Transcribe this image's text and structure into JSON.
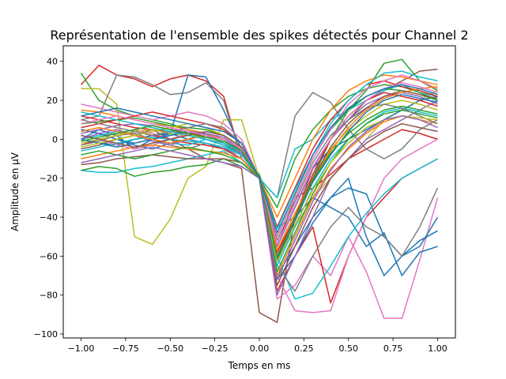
{
  "chart_data": {
    "type": "line",
    "title": "Représentation de l'ensemble des spikes détectés pour Channel 2",
    "xlabel": "Temps en ms",
    "ylabel": "Amplitude en µV",
    "xlim": [
      -1.1,
      1.1
    ],
    "ylim": [
      -102,
      48
    ],
    "x": [
      -1.0,
      -0.9,
      -0.8,
      -0.7,
      -0.6,
      -0.5,
      -0.4,
      -0.3,
      -0.2,
      -0.1,
      0.0,
      0.1,
      0.2,
      0.3,
      0.4,
      0.5,
      0.6,
      0.7,
      0.8,
      0.9,
      1.0
    ],
    "x_ticks": [
      -1.0,
      -0.75,
      -0.5,
      -0.25,
      0.0,
      0.25,
      0.5,
      0.75,
      1.0
    ],
    "x_tick_labels": [
      "−1.00",
      "−0.75",
      "−0.50",
      "−0.25",
      "0.00",
      "0.25",
      "0.50",
      "0.75",
      "1.00"
    ],
    "y_ticks": [
      -100,
      -80,
      -60,
      -40,
      -20,
      0,
      20,
      40
    ],
    "y_tick_labels": [
      "−100",
      "−80",
      "−60",
      "−40",
      "−20",
      "0",
      "20",
      "40"
    ],
    "grid": false,
    "legend": "none",
    "palette": [
      "#1f77b4",
      "#ff7f0e",
      "#2ca02c",
      "#d62728",
      "#9467bd",
      "#8c564b",
      "#e377c2",
      "#7f7f7f",
      "#bcbd22",
      "#17becf"
    ],
    "series": [
      {
        "values": [
          28,
          38,
          33,
          31,
          27,
          31,
          33,
          30,
          22,
          -10,
          -20,
          -55,
          -30,
          -25,
          -18,
          -10,
          -5,
          0,
          5,
          3,
          0
        ],
        "color": "#d62728"
      },
      {
        "values": [
          34,
          20,
          15,
          12,
          10,
          8,
          5,
          3,
          -2,
          -8,
          -18,
          -45,
          -40,
          -20,
          0,
          15,
          25,
          39,
          41,
          30,
          25
        ],
        "color": "#2ca02c"
      },
      {
        "values": [
          26,
          26,
          18,
          -50,
          -54,
          -41,
          -20,
          -14,
          10,
          10,
          -20,
          -60,
          -45,
          -30,
          -20,
          -10,
          0,
          10,
          15,
          20,
          25
        ],
        "color": "#bcbd22"
      },
      {
        "values": [
          10,
          12,
          33,
          32,
          28,
          23,
          24,
          29,
          20,
          -10,
          -20,
          -30,
          12,
          24,
          19,
          5,
          -5,
          -10,
          -5,
          5,
          10
        ],
        "color": "#7f7f7f"
      },
      {
        "values": [
          0,
          5,
          2,
          -5,
          0,
          3,
          33,
          32,
          15,
          -5,
          -20,
          -55,
          -35,
          -15,
          -5,
          0,
          5,
          10,
          15,
          20,
          22
        ],
        "color": "#1f77b4"
      },
      {
        "values": [
          -5,
          -3,
          0,
          2,
          5,
          0,
          -5,
          -10,
          -12,
          -15,
          -89,
          -94,
          -40,
          -15,
          0,
          10,
          20,
          25,
          30,
          35,
          36
        ],
        "color": "#8c564b"
      },
      {
        "values": [
          0,
          2,
          3,
          5,
          3,
          0,
          -2,
          -3,
          -5,
          -8,
          -20,
          -82,
          -75,
          -60,
          -70,
          -50,
          -68,
          -92,
          -92,
          -62,
          -30
        ],
        "color": "#e377c2"
      },
      {
        "values": [
          5,
          3,
          0,
          -2,
          0,
          2,
          4,
          0,
          -3,
          -8,
          -20,
          -60,
          -40,
          -30,
          -35,
          -40,
          -55,
          -48,
          -70,
          -58,
          -55
        ],
        "color": "#1f77b4"
      },
      {
        "values": [
          0,
          -2,
          -3,
          0,
          2,
          3,
          0,
          -2,
          -5,
          -10,
          -20,
          -70,
          -55,
          -40,
          -30,
          -25,
          -28,
          -50,
          -60,
          -52,
          -47
        ],
        "color": "#1f77b4"
      },
      {
        "values": [
          -3,
          0,
          2,
          4,
          2,
          0,
          -2,
          -3,
          -5,
          -10,
          -20,
          -78,
          -60,
          -45,
          -84,
          -60,
          -40,
          -30,
          -20,
          -15,
          -10
        ],
        "color": "#d62728"
      },
      {
        "values": [
          2,
          0,
          -3,
          -5,
          -3,
          0,
          3,
          2,
          0,
          -5,
          -20,
          -70,
          -88,
          -89,
          -88,
          -60,
          -40,
          -20,
          -10,
          -5,
          0
        ],
        "color": "#e377c2"
      },
      {
        "values": [
          0,
          2,
          4,
          3,
          0,
          -2,
          -3,
          0,
          -3,
          -8,
          -20,
          -60,
          -82,
          -79,
          -65,
          -50,
          -38,
          -28,
          -20,
          -15,
          -10
        ],
        "color": "#17becf"
      },
      {
        "values": [
          5,
          3,
          0,
          -3,
          -5,
          -2,
          0,
          3,
          0,
          -6,
          -20,
          -72,
          -60,
          -43,
          -30,
          -20,
          -50,
          -70,
          -60,
          -55,
          -40
        ],
        "color": "#1f77b4"
      },
      {
        "values": [
          -3,
          -1,
          2,
          3,
          0,
          -3,
          -5,
          -2,
          -4,
          -10,
          -20,
          -65,
          -78,
          -60,
          -45,
          -35,
          -45,
          -50,
          -60,
          -45,
          -25
        ],
        "color": "#7f7f7f"
      },
      {
        "values": [
          0,
          3,
          5,
          2,
          -1,
          -3,
          0,
          2,
          -2,
          -7,
          -20,
          -80,
          -60,
          -40,
          -20,
          -10,
          0,
          5,
          10,
          15,
          20
        ],
        "color": "#9467bd"
      },
      {
        "values": [
          -16,
          -17,
          -17,
          -15,
          -14,
          -12,
          -10,
          -8,
          -6,
          -12,
          -20,
          -30,
          -5,
          0,
          10,
          15,
          20,
          25,
          28,
          24,
          22
        ],
        "color": "#17becf"
      },
      {
        "values": [
          -16,
          -14,
          -15,
          -19,
          -17,
          -16,
          -14,
          -13,
          -10,
          -14,
          -20,
          -35,
          -10,
          5,
          15,
          22,
          26,
          28,
          27,
          24,
          20
        ],
        "color": "#2ca02c"
      },
      {
        "values": [
          15,
          14,
          12,
          10,
          8,
          7,
          5,
          3,
          0,
          -6,
          -20,
          -40,
          -20,
          0,
          15,
          25,
          30,
          33,
          32,
          30,
          28
        ],
        "color": "#ff7f0e"
      },
      {
        "values": [
          12,
          10,
          8,
          6,
          5,
          4,
          3,
          2,
          0,
          -5,
          -20,
          -45,
          -25,
          -5,
          10,
          20,
          28,
          30,
          27,
          25,
          22
        ],
        "color": "#d62728"
      },
      {
        "values": [
          8,
          9,
          10,
          11,
          9,
          7,
          6,
          5,
          2,
          -4,
          -20,
          -50,
          -30,
          -10,
          5,
          15,
          22,
          26,
          25,
          23,
          20
        ],
        "color": "#2ca02c"
      },
      {
        "values": [
          3,
          5,
          7,
          8,
          7,
          5,
          4,
          3,
          1,
          -5,
          -20,
          -55,
          -35,
          -15,
          0,
          10,
          18,
          22,
          24,
          22,
          18
        ],
        "color": "#9467bd"
      },
      {
        "values": [
          -2,
          0,
          2,
          4,
          5,
          3,
          2,
          1,
          -1,
          -6,
          -20,
          -60,
          -40,
          -20,
          -5,
          5,
          12,
          18,
          20,
          18,
          15
        ],
        "color": "#bcbd22"
      },
      {
        "values": [
          -6,
          -4,
          -2,
          0,
          1,
          0,
          -1,
          -2,
          -4,
          -8,
          -20,
          -65,
          -45,
          -25,
          -10,
          0,
          8,
          14,
          16,
          14,
          12
        ],
        "color": "#17becf"
      },
      {
        "values": [
          -10,
          -8,
          -6,
          -4,
          -3,
          -4,
          -5,
          -6,
          -7,
          -10,
          -20,
          -70,
          -50,
          -30,
          -15,
          -5,
          3,
          9,
          12,
          10,
          8
        ],
        "color": "#ff7f0e"
      },
      {
        "values": [
          -13,
          -12,
          -10,
          -9,
          -8,
          -9,
          -10,
          -10,
          -10,
          -12,
          -20,
          -75,
          -55,
          -35,
          -20,
          -10,
          -2,
          4,
          8,
          6,
          4
        ],
        "color": "#8c564b"
      },
      {
        "values": [
          18,
          16,
          14,
          12,
          10,
          12,
          14,
          12,
          8,
          0,
          -20,
          -50,
          -30,
          -10,
          5,
          18,
          26,
          30,
          33,
          30,
          26
        ],
        "color": "#e377c2"
      },
      {
        "values": [
          6,
          8,
          10,
          12,
          14,
          12,
          10,
          8,
          5,
          -2,
          -20,
          -58,
          -40,
          -18,
          0,
          12,
          20,
          24,
          22,
          20,
          17
        ],
        "color": "#d62728"
      },
      {
        "values": [
          0,
          -2,
          -4,
          -2,
          0,
          2,
          4,
          2,
          0,
          -6,
          -20,
          -62,
          -42,
          -22,
          -8,
          4,
          14,
          20,
          23,
          21,
          19
        ],
        "color": "#1f77b4"
      },
      {
        "values": [
          -8,
          -6,
          -8,
          -10,
          -8,
          -6,
          -4,
          -6,
          -8,
          -12,
          -20,
          -68,
          -48,
          -28,
          -12,
          0,
          8,
          13,
          15,
          13,
          11
        ],
        "color": "#2ca02c"
      },
      {
        "values": [
          10,
          8,
          6,
          4,
          2,
          4,
          6,
          8,
          6,
          -2,
          -20,
          -52,
          -32,
          -12,
          2,
          10,
          16,
          18,
          16,
          12,
          8
        ],
        "color": "#7f7f7f"
      },
      {
        "values": [
          4,
          6,
          4,
          2,
          0,
          -2,
          0,
          2,
          0,
          -5,
          -20,
          -57,
          -38,
          -20,
          -6,
          6,
          15,
          21,
          24,
          26,
          27
        ],
        "color": "#ff7f0e"
      },
      {
        "values": [
          -4,
          -2,
          0,
          2,
          4,
          6,
          8,
          6,
          2,
          -4,
          -20,
          -63,
          -44,
          -26,
          -12,
          -2,
          6,
          10,
          12,
          11,
          10
        ],
        "color": "#bcbd22"
      },
      {
        "values": [
          14,
          12,
          10,
          8,
          6,
          4,
          2,
          0,
          -2,
          -6,
          -20,
          -46,
          -26,
          -8,
          8,
          20,
          28,
          34,
          35,
          32,
          30
        ],
        "color": "#17becf"
      },
      {
        "values": [
          -12,
          -10,
          -8,
          -6,
          -4,
          -6,
          -8,
          -10,
          -12,
          -14,
          -20,
          -72,
          -52,
          -32,
          -16,
          -4,
          4,
          10,
          12,
          10,
          6
        ],
        "color": "#9467bd"
      },
      {
        "values": [
          2,
          0,
          -2,
          -4,
          -2,
          0,
          2,
          4,
          2,
          -4,
          -20,
          -60,
          -40,
          -20,
          -4,
          8,
          16,
          22,
          25,
          23,
          21
        ],
        "color": "#8c564b"
      },
      {
        "values": [
          8,
          10,
          12,
          10,
          8,
          6,
          4,
          2,
          0,
          -5,
          -20,
          -54,
          -34,
          -14,
          0,
          12,
          20,
          26,
          29,
          27,
          24
        ],
        "color": "#e377c2"
      },
      {
        "values": [
          -1,
          1,
          3,
          5,
          7,
          5,
          3,
          1,
          -1,
          -6,
          -20,
          -61,
          -41,
          -21,
          -7,
          3,
          10,
          15,
          17,
          15,
          13
        ],
        "color": "#2ca02c"
      },
      {
        "values": [
          12,
          14,
          16,
          14,
          12,
          10,
          8,
          6,
          4,
          -2,
          -20,
          -48,
          -28,
          -8,
          6,
          16,
          22,
          26,
          28,
          26,
          23
        ],
        "color": "#1f77b4"
      }
    ]
  }
}
